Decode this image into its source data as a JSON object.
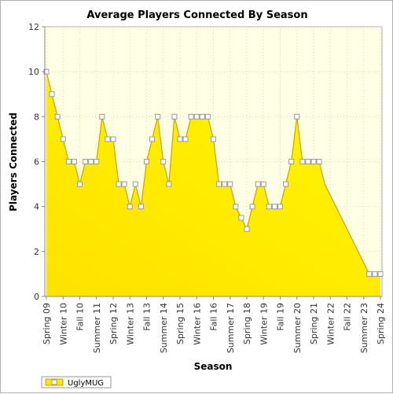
{
  "chart_data": {
    "type": "area",
    "title": "Average Players Connected By Season",
    "xlabel": "Season",
    "ylabel": "Players Connected",
    "ylim": [
      0,
      12
    ],
    "yticks": [
      0,
      2,
      4,
      6,
      8,
      10,
      12
    ],
    "grid": true,
    "legend_position": "bottom-left",
    "x_tick_labels": [
      "Spring 09",
      "Winter 10",
      "Fall 10",
      "Summer 11",
      "Spring 12",
      "Winter 13",
      "Fall 13",
      "Summer 14",
      "Spring 15",
      "Winter 16",
      "Fall 16",
      "Summer 17",
      "Spring 18",
      "Winter 19",
      "Fall 19",
      "Summer 20",
      "Spring 21",
      "Winter 22",
      "Fall 22",
      "Summer 23",
      "Spring 24"
    ],
    "series": [
      {
        "name": "UglyMUG",
        "values": [
          10,
          9,
          8,
          7,
          6,
          6,
          5,
          6,
          6,
          6,
          8,
          7,
          7,
          5,
          5,
          4,
          5,
          4,
          6,
          7,
          8,
          6,
          5,
          8,
          7,
          7,
          8,
          8,
          8,
          8,
          7,
          5,
          5,
          5,
          4,
          3.5,
          3,
          4,
          5,
          5,
          4,
          4,
          4,
          5,
          6,
          8,
          6,
          6,
          6,
          6,
          5,
          4.5,
          4,
          3.5,
          3,
          2.5,
          2,
          1.5,
          1,
          1,
          1
        ],
        "gap_after_index": [
          49
        ],
        "fill_top": "#fff600",
        "fill_bottom": "#ffe200",
        "line": "#c9a400"
      }
    ]
  },
  "colors": {
    "plot_background": "#ffffe5",
    "grid": "#d8d8b0",
    "marker_fill": "#ffffff",
    "marker_stroke": "#999999"
  }
}
